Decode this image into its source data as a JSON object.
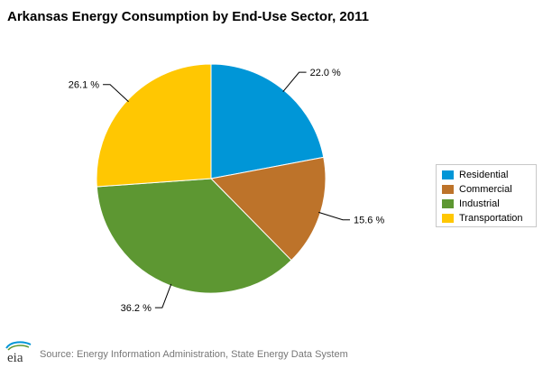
{
  "chart_data": {
    "type": "pie",
    "title": "Arkansas Energy Consumption by End-Use Sector, 2011",
    "slices": [
      {
        "label": "Residential",
        "value": 22.0,
        "display": "22.0 %",
        "color": "#0096d7"
      },
      {
        "label": "Commercial",
        "value": 15.6,
        "display": "15.6 %",
        "color": "#bd732a"
      },
      {
        "label": "Industrial",
        "value": 36.2,
        "display": "36.2 %",
        "color": "#5d9732"
      },
      {
        "label": "Transportation",
        "value": 26.1,
        "display": "26.1 %",
        "color": "#ffc702"
      }
    ],
    "legend_position": "right"
  },
  "source": "Source: Energy Information Administration, State Energy Data System",
  "logo_text": "eia"
}
